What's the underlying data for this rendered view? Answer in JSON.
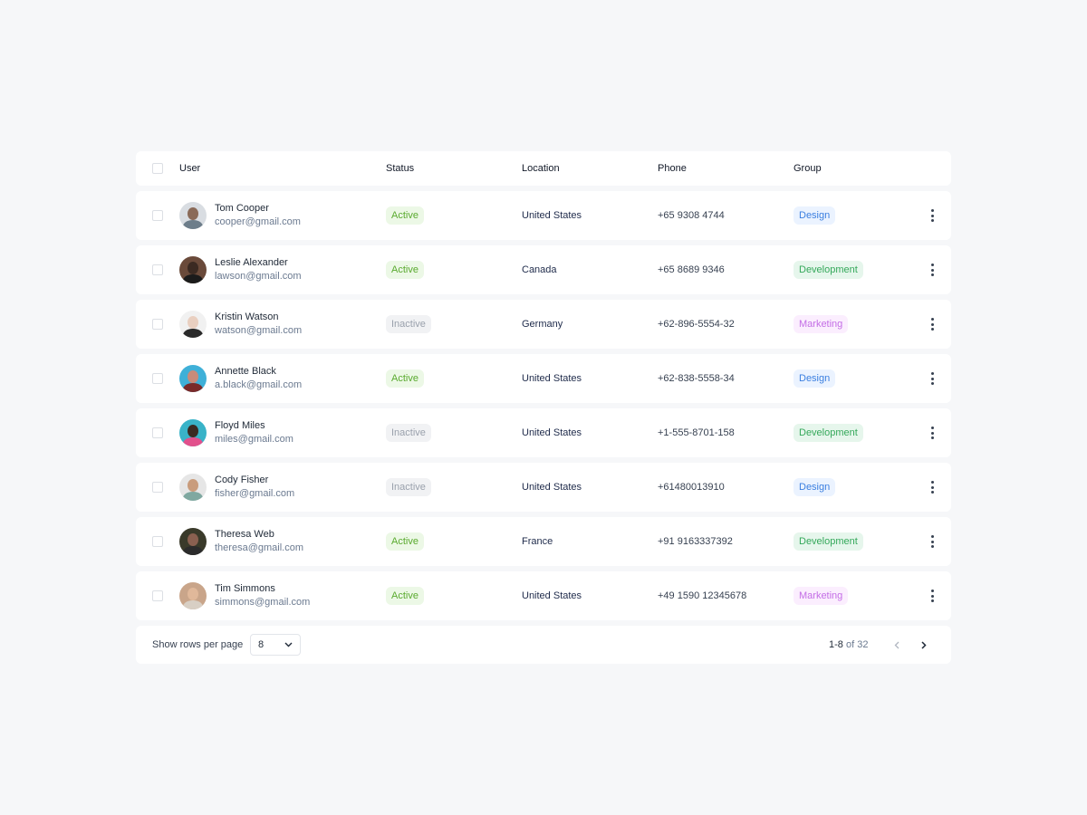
{
  "header": {
    "user": "User",
    "status": "Status",
    "location": "Location",
    "phone": "Phone",
    "group": "Group"
  },
  "rows": [
    {
      "name": "Tom Cooper",
      "email": "cooper@gmail.com",
      "status": "Active",
      "location": "United States",
      "phone": "+65 9308 4744",
      "group": "Design"
    },
    {
      "name": "Leslie Alexander",
      "email": "lawson@gmail.com",
      "status": "Active",
      "location": "Canada",
      "phone": "+65 8689 9346",
      "group": "Development"
    },
    {
      "name": "Kristin Watson",
      "email": "watson@gmail.com",
      "status": "Inactive",
      "location": "Germany",
      "phone": "+62-896-5554-32",
      "group": "Marketing"
    },
    {
      "name": "Annette Black",
      "email": "a.black@gmail.com",
      "status": "Active",
      "location": "United States",
      "phone": "+62-838-5558-34",
      "group": "Design"
    },
    {
      "name": "Floyd Miles",
      "email": "miles@gmail.com",
      "status": "Inactive",
      "location": "United States",
      "phone": "+1-555-8701-158",
      "group": "Development"
    },
    {
      "name": "Cody Fisher",
      "email": "fisher@gmail.com",
      "status": "Inactive",
      "location": "United States",
      "phone": "+61480013910",
      "group": "Design"
    },
    {
      "name": "Theresa Web",
      "email": "theresa@gmail.com",
      "status": "Active",
      "location": "France",
      "phone": "+91 9163337392",
      "group": "Development"
    },
    {
      "name": "Tim Simmons",
      "email": "simmons@gmail.com",
      "status": "Active",
      "location": "United States",
      "phone": "+49 1590 12345678",
      "group": "Marketing"
    }
  ],
  "footer": {
    "rows_label": "Show rows per page",
    "rows_value": "8",
    "range": "1-8",
    "of_label": "of 32"
  },
  "colors": {
    "background": "#f6f7f9",
    "active": "#5aaa2f",
    "inactive": "#9aa1ac",
    "design": "#3b7fe0",
    "development": "#34a85a",
    "marketing": "#c46ee6"
  }
}
